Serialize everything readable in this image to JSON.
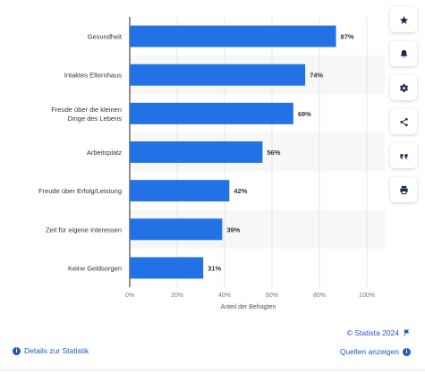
{
  "chart_data": {
    "type": "bar",
    "orientation": "horizontal",
    "categories": [
      "Gesundheit",
      "Intaktes Elternhaus",
      "Freude über die kleinen\nDinge des Lebens",
      "Arbeitsplatz",
      "Freude über Erfolg/Leistung",
      "Zeit für eigene Interessen",
      "Keine Geldsorgen"
    ],
    "values": [
      87,
      74,
      69,
      56,
      42,
      39,
      31
    ],
    "value_labels": [
      "87%",
      "74%",
      "69%",
      "56%",
      "42%",
      "39%",
      "31%"
    ],
    "xlabel": "Anteil der Befragten",
    "xlim": [
      0,
      100
    ],
    "xticks": [
      "0%",
      "20%",
      "40%",
      "60%",
      "80%",
      "100%"
    ],
    "grid": true,
    "bar_color": "#2272e6"
  },
  "footer": {
    "copyright": "© Statista 2024",
    "sources_label": "Quellen anzeigen",
    "details_label": "Details zur Statistik"
  },
  "toolbar": {
    "icons": [
      "star-icon",
      "bell-icon",
      "gear-icon",
      "share-icon",
      "quote-icon",
      "print-icon"
    ]
  },
  "colors": {
    "accent": "#1f57c3",
    "bar": "#2272e6",
    "band": "#f7f7f7"
  }
}
